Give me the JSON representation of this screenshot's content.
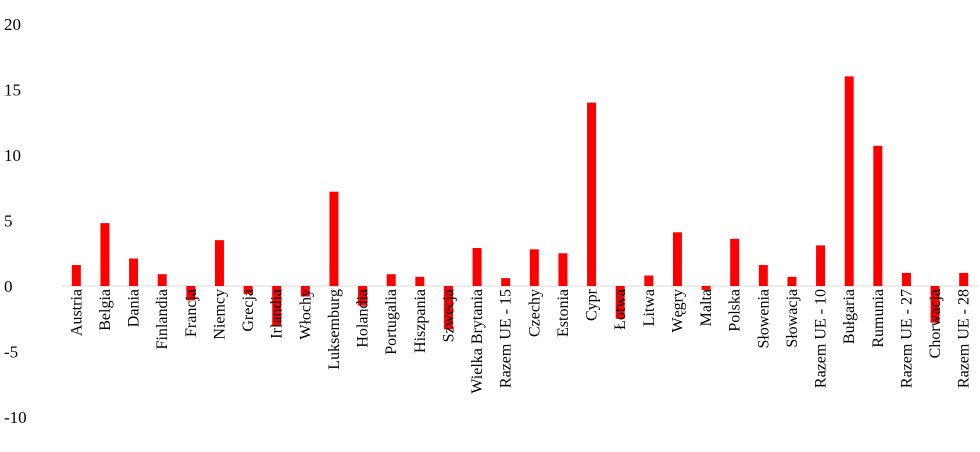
{
  "chart_data": {
    "type": "bar",
    "categories": [
      "Austria",
      "Belgia",
      "Dania",
      "Finlandia",
      "Francja",
      "Niemcy",
      "Grecja",
      "Irlandia",
      "Włochy",
      "Luksemburg",
      "Holandia",
      "Portugalia",
      "Hiszpania",
      "Szwecja",
      "Wielka Brytania",
      "Razem UE - 15",
      "Czechy",
      "Estonia",
      "Cypr",
      "Łotwa",
      "Litwa",
      "Węgry",
      "Malta",
      "Polska",
      "Słowenia",
      "Słowacja",
      "Razem UE - 10",
      "Bułgaria",
      "Rumunia",
      "Razem UE - 27",
      "Chorwacja",
      "Razem UE - 28"
    ],
    "values": [
      1.6,
      4.8,
      2.1,
      0.9,
      -1.1,
      3.5,
      -0.6,
      -3.0,
      -0.8,
      7.2,
      -1.5,
      0.9,
      0.7,
      -3.3,
      2.9,
      0.6,
      2.8,
      2.5,
      14.0,
      -2.5,
      0.8,
      4.1,
      -0.3,
      3.6,
      1.6,
      0.7,
      3.1,
      16.0,
      10.7,
      1.0,
      -2.8,
      1.0
    ],
    "yticks": [
      "20",
      "15",
      "10",
      "5",
      "0",
      "-5",
      "-10"
    ],
    "ylim": [
      -10,
      20
    ],
    "bar_color": "#ff0000",
    "grid": false,
    "title": "",
    "xlabel": "",
    "ylabel": ""
  }
}
